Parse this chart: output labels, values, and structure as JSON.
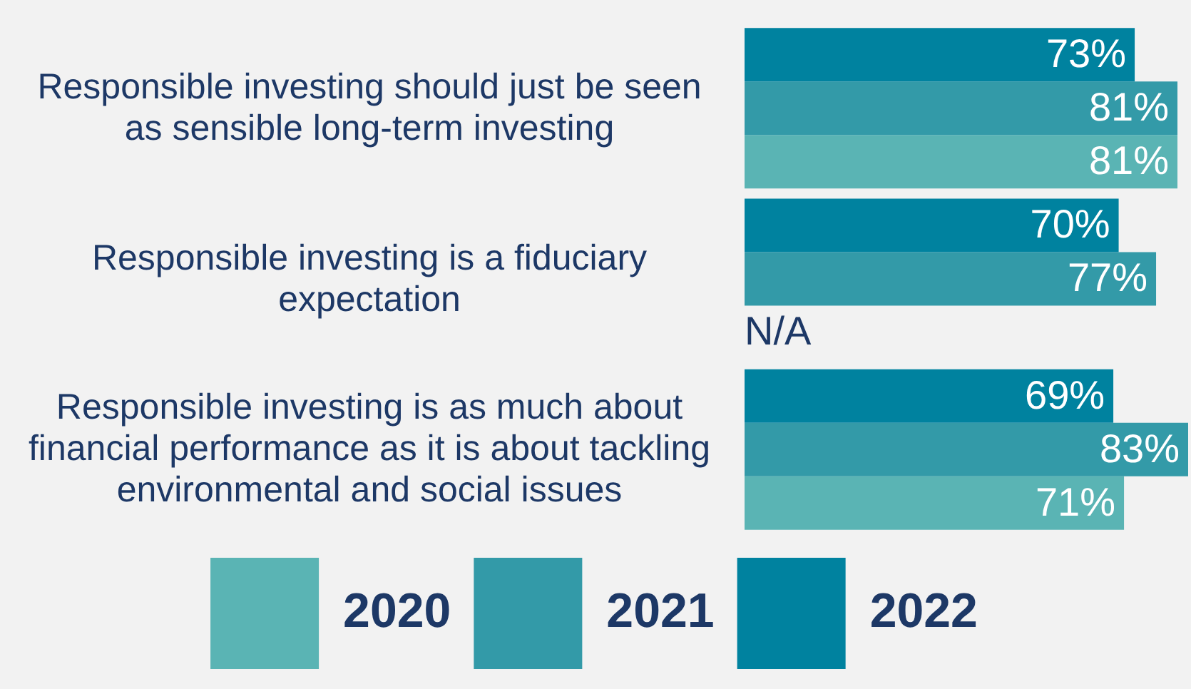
{
  "chart_data": {
    "type": "bar",
    "orientation": "horizontal",
    "categories": [
      "Responsible investing should just be seen as sensible long-term investing",
      "Responsible investing is a fiduciary expectation",
      "Responsible investing is as much about financial performance as it is about tackling environmental and social issues"
    ],
    "series": [
      {
        "name": "2022",
        "color": "#00829f",
        "values": [
          73,
          70,
          69
        ],
        "value_labels": [
          "73%",
          "70%",
          "69%"
        ]
      },
      {
        "name": "2021",
        "color": "#339aa8",
        "values": [
          81,
          77,
          83
        ],
        "value_labels": [
          "81%",
          "77%",
          "83%"
        ]
      },
      {
        "name": "2020",
        "color": "#5ab4b4",
        "values": [
          81,
          null,
          71
        ],
        "value_labels": [
          "81%",
          null,
          "71%"
        ]
      }
    ],
    "annotations": [
      "N/A"
    ],
    "legend": "bottom"
  }
}
